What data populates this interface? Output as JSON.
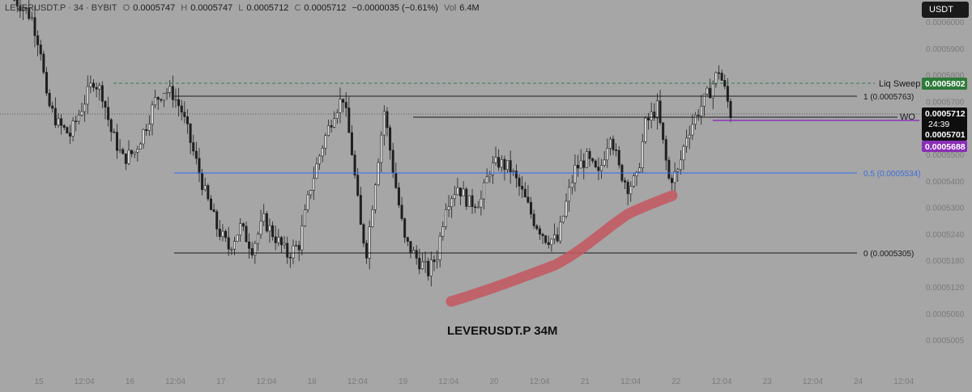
{
  "legend": {
    "symbol": "LEVERUSDT.P · 34 · BYBIT",
    "open_label": "O",
    "open": "0.0005747",
    "high_label": "H",
    "high": "0.0005747",
    "low_label": "L",
    "low": "0.0005712",
    "close_label": "C",
    "close": "0.0005712",
    "change": "−0.0000035 (−0.61%)",
    "volume_label": "Vol",
    "volume": "6.4M"
  },
  "currency_button": "USDT",
  "overlay_title": "LEVERUSDT.P 34M",
  "colors": {
    "background": "#a6a6a6",
    "candle": "#1f1f1f",
    "support_line": "#1a1a1a",
    "fib_line": "#2e6ff2",
    "liq_line": "#3a7a50",
    "wo_line": "#9130b8",
    "trend_brush": "#c4565f",
    "tag_liq": "#2f7a3a",
    "tag_price": "#0e0e0e",
    "tag_wo": "#8a2fb6",
    "fib_text": "#3a6fd9"
  },
  "chart_data": {
    "type": "candlestick",
    "title": "LEVERUSDT.P 34M",
    "y_axis_ticks": [
      "0.0006000",
      "0.0005900",
      "0.0005800",
      "0.0005700",
      "0.0005600",
      "0.0005500",
      "0.0005400",
      "0.0005300",
      "0.0005240",
      "0.0005180",
      "0.0005120",
      "0.0005060",
      "0.0005005"
    ],
    "x_axis_ticks": [
      "15",
      "12:04",
      "16",
      "12:04",
      "17",
      "12:04",
      "18",
      "12:04",
      "19",
      "12:04",
      "20",
      "12:04",
      "21",
      "12:04",
      "22",
      "12:04",
      "23",
      "12:04",
      "24",
      "12:04"
    ],
    "levels": [
      {
        "name": "Liq Sweep",
        "price": 0.0005802,
        "tag": "0.0005802"
      },
      {
        "name": "1",
        "label": "1 (0.0005763)",
        "price": 0.0005763
      },
      {
        "name": "WO",
        "label": "WO",
        "price": 0.0005688,
        "tag": "0.0005688"
      },
      {
        "name": "0.5",
        "label": "0.5 (0.0005534)",
        "price": 0.0005534
      },
      {
        "name": "0",
        "label": "0 (0.0005305)",
        "price": 0.0005305
      }
    ],
    "last_price": {
      "value": "0.0005712",
      "countdown": "24:39",
      "secondary": "0.0005701"
    },
    "price_path": [
      [
        0,
        0.000605
      ],
      [
        4,
        0.0006025
      ],
      [
        7,
        0.000599
      ],
      [
        10,
        0.00059
      ],
      [
        12,
        0.000575
      ],
      [
        16,
        0.000568
      ],
      [
        20,
        0.000565
      ],
      [
        24,
        0.000573
      ],
      [
        28,
        0.000581
      ],
      [
        31,
        0.000577
      ],
      [
        34,
        0.000566
      ],
      [
        38,
        0.000558
      ],
      [
        42,
        0.00056
      ],
      [
        46,
        0.000568
      ],
      [
        49,
        0.000575
      ],
      [
        52,
        0.000578
      ],
      [
        55,
        0.000577
      ],
      [
        58,
        0.000572
      ],
      [
        62,
        0.00056
      ],
      [
        66,
        0.000548
      ],
      [
        70,
        0.000538
      ],
      [
        74,
        0.000532
      ],
      [
        78,
        0.000538
      ],
      [
        82,
        0.000532
      ],
      [
        86,
        0.00054
      ],
      [
        90,
        0.000535
      ],
      [
        94,
        0.00053
      ],
      [
        98,
        0.000533
      ],
      [
        102,
        0.00055
      ],
      [
        106,
        0.000562
      ],
      [
        110,
        0.000572
      ],
      [
        113,
        0.000576
      ],
      [
        116,
        0.00056
      ],
      [
        119,
        0.000538
      ],
      [
        121,
        0.000531
      ],
      [
        124,
        0.000552
      ],
      [
        127,
        0.000572
      ],
      [
        130,
        0.000555
      ],
      [
        134,
        0.000534
      ],
      [
        138,
        0.000529
      ],
      [
        142,
        0.000525
      ],
      [
        145,
        0.00053
      ],
      [
        148,
        0.000545
      ],
      [
        152,
        0.00055
      ],
      [
        156,
        0.000545
      ],
      [
        160,
        0.000546
      ],
      [
        163,
        0.000555
      ],
      [
        166,
        0.000557
      ],
      [
        170,
        0.000555
      ],
      [
        174,
        0.000548
      ],
      [
        178,
        0.00054
      ],
      [
        182,
        0.000535
      ],
      [
        186,
        0.000534
      ],
      [
        189,
        0.000545
      ],
      [
        192,
        0.000555
      ],
      [
        196,
        0.000558
      ],
      [
        200,
        0.000553
      ],
      [
        204,
        0.000566
      ],
      [
        207,
        0.000555
      ],
      [
        210,
        0.00055
      ],
      [
        213,
        0.000552
      ],
      [
        216,
        0.000568
      ],
      [
        220,
        0.000573
      ],
      [
        224,
        0.000552
      ],
      [
        227,
        0.000554
      ],
      [
        230,
        0.000565
      ],
      [
        234,
        0.000572
      ],
      [
        238,
        0.000578
      ],
      [
        241,
        0.000584
      ],
      [
        243,
        0.000578
      ],
      [
        245,
        0.0005712
      ]
    ]
  }
}
